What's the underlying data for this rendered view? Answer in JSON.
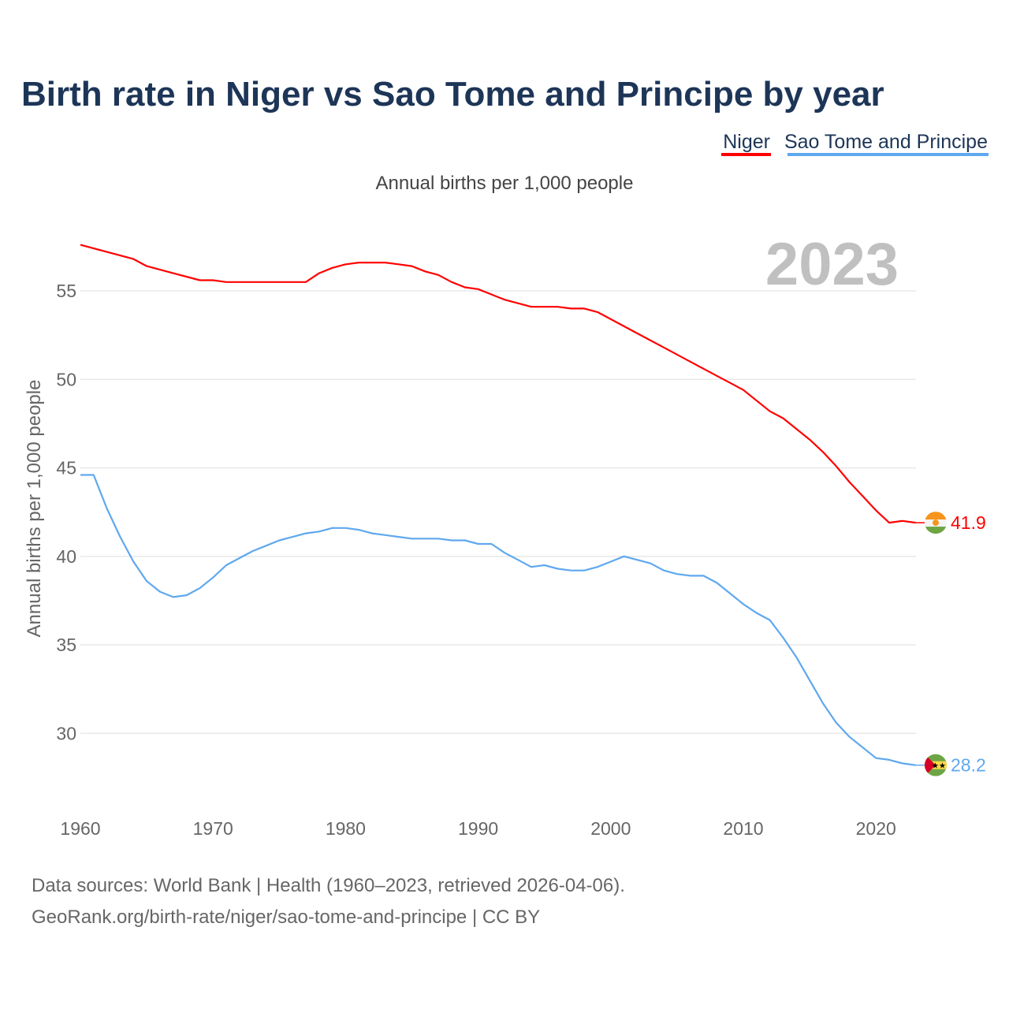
{
  "chart_data": {
    "type": "line",
    "title": "Birth rate in Niger vs Sao Tome and Principe by year",
    "subtitle": "Annual births per 1,000 people",
    "xlabel": "",
    "ylabel": "Annual births per 1,000 people",
    "year_label": "2023",
    "xlim": [
      1960,
      2023
    ],
    "ylim": [
      26,
      58
    ],
    "x_ticks": [
      1960,
      1970,
      1980,
      1990,
      2000,
      2010,
      2020
    ],
    "y_ticks": [
      30,
      35,
      40,
      45,
      50,
      55
    ],
    "grid": true,
    "legend_position": "top-right",
    "x": [
      1960,
      1961,
      1962,
      1963,
      1964,
      1965,
      1966,
      1967,
      1968,
      1969,
      1970,
      1971,
      1972,
      1973,
      1974,
      1975,
      1976,
      1977,
      1978,
      1979,
      1980,
      1981,
      1982,
      1983,
      1984,
      1985,
      1986,
      1987,
      1988,
      1989,
      1990,
      1991,
      1992,
      1993,
      1994,
      1995,
      1996,
      1997,
      1998,
      1999,
      2000,
      2001,
      2002,
      2003,
      2004,
      2005,
      2006,
      2007,
      2008,
      2009,
      2010,
      2011,
      2012,
      2013,
      2014,
      2015,
      2016,
      2017,
      2018,
      2019,
      2020,
      2021,
      2022,
      2023
    ],
    "series": [
      {
        "name": "Niger",
        "color": "#ff0000",
        "end_label": "41.9",
        "values": [
          57.6,
          57.4,
          57.2,
          57.0,
          56.8,
          56.4,
          56.2,
          56.0,
          55.8,
          55.6,
          55.6,
          55.5,
          55.5,
          55.5,
          55.5,
          55.5,
          55.5,
          55.5,
          56.0,
          56.3,
          56.5,
          56.6,
          56.6,
          56.6,
          56.5,
          56.4,
          56.1,
          55.9,
          55.5,
          55.2,
          55.1,
          54.8,
          54.5,
          54.3,
          54.1,
          54.1,
          54.1,
          54.0,
          54.0,
          53.8,
          53.4,
          53.0,
          52.6,
          52.2,
          51.8,
          51.4,
          51.0,
          50.6,
          50.2,
          49.8,
          49.4,
          48.8,
          48.2,
          47.8,
          47.2,
          46.6,
          45.9,
          45.1,
          44.2,
          43.4,
          42.6,
          41.9,
          42.0,
          41.9
        ]
      },
      {
        "name": "Sao Tome and Principe",
        "color": "#5fa8ee",
        "end_label": "28.2",
        "values": [
          44.6,
          44.6,
          42.7,
          41.1,
          39.7,
          38.6,
          38.0,
          37.7,
          37.8,
          38.2,
          38.8,
          39.5,
          39.9,
          40.3,
          40.6,
          40.9,
          41.1,
          41.3,
          41.4,
          41.6,
          41.6,
          41.5,
          41.3,
          41.2,
          41.1,
          41.0,
          41.0,
          41.0,
          40.9,
          40.9,
          40.7,
          40.7,
          40.2,
          39.8,
          39.4,
          39.5,
          39.3,
          39.2,
          39.2,
          39.4,
          39.7,
          40.0,
          39.8,
          39.6,
          39.2,
          39.0,
          38.9,
          38.9,
          38.5,
          37.9,
          37.3,
          36.8,
          36.4,
          35.4,
          34.3,
          33.0,
          31.7,
          30.6,
          29.8,
          29.2,
          28.6,
          28.5,
          28.3,
          28.2
        ]
      }
    ]
  },
  "footer": {
    "line1": "Data sources: World Bank | Health (1960–2023, retrieved 2026-04-06).",
    "line2": "GeoRank.org/birth-rate/niger/sao-tome-and-principe | CC BY"
  }
}
